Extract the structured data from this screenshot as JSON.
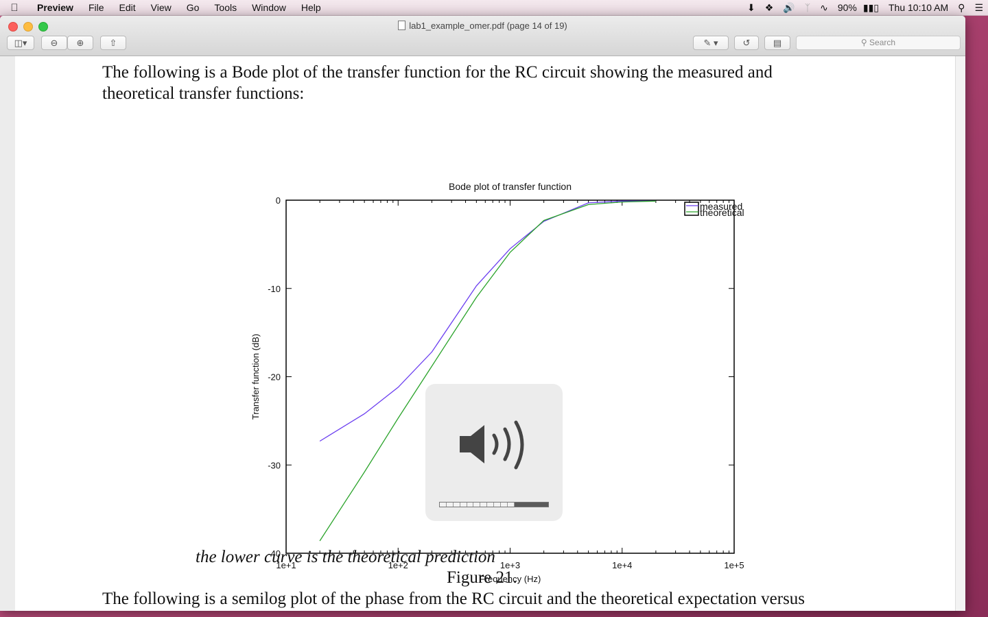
{
  "menubar": {
    "app": "Preview",
    "items": [
      "File",
      "Edit",
      "View",
      "Go",
      "Tools",
      "Window",
      "Help"
    ],
    "battery": "90%",
    "clock": "Thu 10:10 AM"
  },
  "window": {
    "title": "lab1_example_omer.pdf (page 14 of 19)",
    "search_placeholder": "Search"
  },
  "document": {
    "intro_line1": "The following is a Bode plot of the transfer function for the RC circuit showing the measured and",
    "intro_line2": "theoretical transfer functions:",
    "caption_italic": "the lower curve is the theoretical prediction",
    "figure_label": "Figure 21.",
    "next_line": "The following is a semilog plot of the phase from the RC circuit and the theoretical expectation versus"
  },
  "hud": {
    "volume_level": 0.69,
    "segments": 16,
    "icon": "speaker-volume-icon"
  },
  "chart_data": {
    "type": "line",
    "title": "Bode plot of transfer function",
    "xlabel": "Frequency (Hz)",
    "ylabel": "Transfer function (dB)",
    "xscale": "log",
    "xlim": [
      10,
      100000
    ],
    "ylim": [
      -40,
      0
    ],
    "xticks": [
      "1e+1",
      "1e+2",
      "1e+3",
      "1e+4",
      "1e+5"
    ],
    "yticks": [
      "0",
      "-10",
      "-20",
      "-30",
      "-40"
    ],
    "legend_position": "top-right",
    "series": [
      {
        "name": "measured",
        "color": "#6a3df0",
        "x": [
          20,
          50,
          100,
          200,
          500,
          1000,
          2000,
          5000,
          10000,
          20000
        ],
        "y": [
          -27.3,
          -24.2,
          -21.2,
          -17.2,
          -9.7,
          -5.5,
          -2.4,
          -0.3,
          -0.1,
          -0.1
        ]
      },
      {
        "name": "theoretical",
        "color": "#2aa32a",
        "x": [
          20,
          50,
          100,
          200,
          500,
          1000,
          2000,
          5000,
          10000,
          20000
        ],
        "y": [
          -38.6,
          -30.8,
          -24.7,
          -18.8,
          -11.0,
          -5.9,
          -2.3,
          -0.5,
          -0.2,
          -0.1
        ]
      }
    ]
  }
}
